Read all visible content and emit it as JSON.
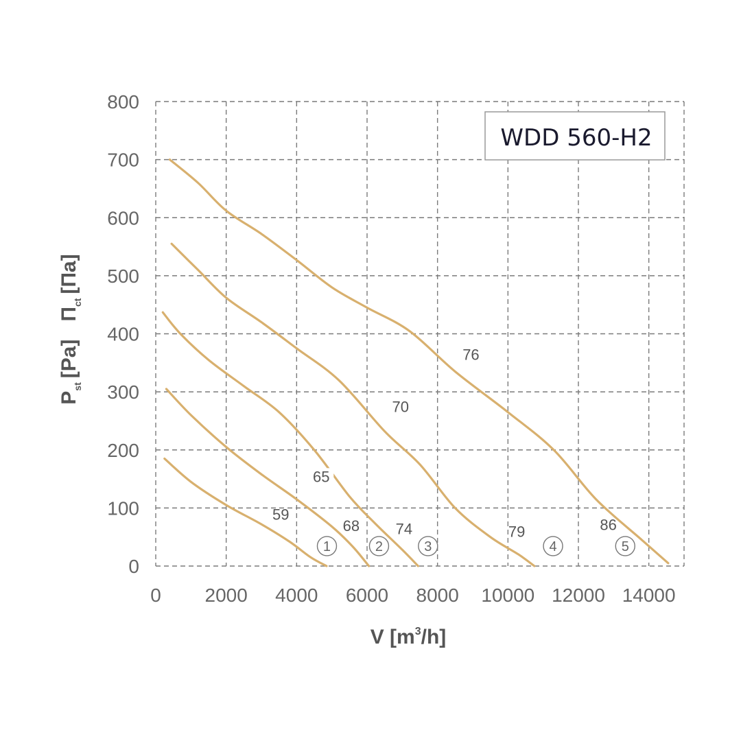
{
  "chart_data": {
    "type": "line",
    "title": "WDD 560-H2",
    "xlabel": "V [m³/h]",
    "xlabel_parts": {
      "main": "V [m",
      "sup": "3",
      "tail": "/h]"
    },
    "ylabel_parts": {
      "p_main": "P",
      "p_sub": "st",
      "p_unit": "[Pa]",
      "pi_main": "П",
      "pi_sub": "ct",
      "pi_unit": "[Па]"
    },
    "xlim": [
      0,
      15000
    ],
    "ylim": [
      0,
      800
    ],
    "xticks": [
      0,
      2000,
      4000,
      6000,
      8000,
      10000,
      12000,
      14000
    ],
    "xtick_labels": [
      "0",
      "2000",
      "4000",
      "6000",
      "8000",
      "10000",
      "12000",
      "14000"
    ],
    "yticks": [
      0,
      100,
      200,
      300,
      400,
      500,
      600,
      700,
      800
    ],
    "ytick_labels": [
      "0",
      "100",
      "200",
      "300",
      "400",
      "500",
      "600",
      "700",
      "800"
    ],
    "grid": true,
    "line_color": "#d8b06e",
    "series": [
      {
        "id": "1",
        "db_label": "59",
        "db_at": [
          3550,
          80
        ],
        "num_at": [
          4860,
          32
        ],
        "x": [
          250,
          1000,
          2000,
          3000,
          3800,
          4400,
          4850
        ],
        "y": [
          185,
          145,
          105,
          72,
          42,
          15,
          0
        ]
      },
      {
        "id": "2",
        "db_label": "68",
        "db_at": [
          5550,
          60
        ],
        "num_at": [
          6340,
          32
        ],
        "x": [
          300,
          1000,
          2000,
          3000,
          4000,
          5000,
          5600,
          6050
        ],
        "y": [
          305,
          260,
          205,
          158,
          115,
          68,
          33,
          0
        ]
      },
      {
        "id": "3",
        "db_label": "74",
        "db_at": [
          7050,
          55
        ],
        "num_at": [
          7730,
          32
        ],
        "x": [
          200,
          700,
          1500,
          2500,
          3500,
          4500,
          5500,
          6200,
          7000,
          7450
        ],
        "y": [
          437,
          400,
          355,
          310,
          265,
          200,
          120,
          75,
          28,
          0
        ]
      },
      {
        "id": "4",
        "db_label": "79",
        "db_at": [
          10250,
          50
        ],
        "num_at": [
          11280,
          32
        ],
        "x": [
          450,
          1200,
          2000,
          3000,
          4000,
          5200,
          6500,
          7500,
          8500,
          9500,
          10300,
          10750
        ],
        "y": [
          555,
          510,
          462,
          420,
          375,
          320,
          232,
          175,
          100,
          50,
          20,
          0
        ]
      },
      {
        "id": "5",
        "db_label": "86",
        "db_at": [
          12850,
          62
        ],
        "num_at": [
          13330,
          32
        ],
        "x": [
          400,
          1200,
          2000,
          3000,
          4000,
          5000,
          6000,
          7200,
          8500,
          10000,
          11300,
          12500,
          13800,
          14550
        ],
        "y": [
          700,
          660,
          612,
          572,
          527,
          480,
          445,
          405,
          335,
          265,
          200,
          115,
          45,
          5
        ]
      }
    ],
    "curve_labels": [
      {
        "text": "76",
        "at": [
          8950,
          355
        ]
      },
      {
        "text": "70",
        "at": [
          6950,
          265
        ]
      },
      {
        "text": "65",
        "at": [
          4700,
          145
        ]
      }
    ]
  }
}
